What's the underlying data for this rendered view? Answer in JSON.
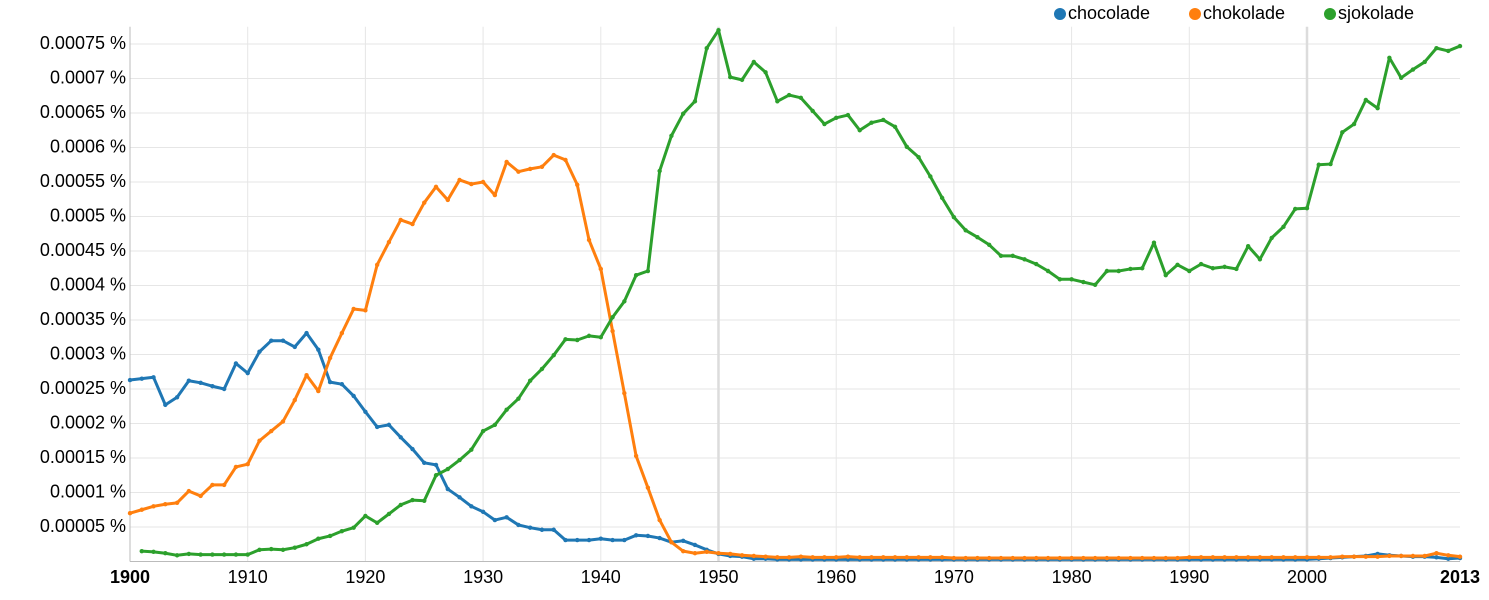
{
  "chart_data": {
    "type": "line",
    "x": [
      1900,
      1901,
      1902,
      1903,
      1904,
      1905,
      1906,
      1907,
      1908,
      1909,
      1910,
      1911,
      1912,
      1913,
      1914,
      1915,
      1916,
      1917,
      1918,
      1919,
      1920,
      1921,
      1922,
      1923,
      1924,
      1925,
      1926,
      1927,
      1928,
      1929,
      1930,
      1931,
      1932,
      1933,
      1934,
      1935,
      1936,
      1937,
      1938,
      1939,
      1940,
      1941,
      1942,
      1943,
      1944,
      1945,
      1946,
      1947,
      1948,
      1949,
      1950,
      1951,
      1952,
      1953,
      1954,
      1955,
      1956,
      1957,
      1958,
      1959,
      1960,
      1961,
      1962,
      1963,
      1964,
      1965,
      1966,
      1967,
      1968,
      1969,
      1970,
      1971,
      1972,
      1973,
      1974,
      1975,
      1976,
      1977,
      1978,
      1979,
      1980,
      1981,
      1982,
      1983,
      1984,
      1985,
      1986,
      1987,
      1988,
      1989,
      1990,
      1991,
      1992,
      1993,
      1994,
      1995,
      1996,
      1997,
      1998,
      1999,
      2000,
      2001,
      2002,
      2003,
      2004,
      2005,
      2006,
      2007,
      2008,
      2009,
      2010,
      2011,
      2012,
      2013
    ],
    "series": [
      {
        "name": "chocolade",
        "color": "#1f77b4",
        "values": [
          0.000263,
          0.000265,
          0.000267,
          0.000227,
          0.000238,
          0.000262,
          0.000259,
          0.000254,
          0.00025,
          0.000287,
          0.000273,
          0.000304,
          0.00032,
          0.00032,
          0.000311,
          0.000331,
          0.000307,
          0.00026,
          0.000257,
          0.00024,
          0.000217,
          0.000195,
          0.000198,
          0.00018,
          0.000163,
          0.000143,
          0.00014,
          0.000105,
          9.3e-05,
          8e-05,
          7.2e-05,
          6e-05,
          6.4e-05,
          5.3e-05,
          4.9e-05,
          4.6e-05,
          4.6e-05,
          3.1e-05,
          3.1e-05,
          3.1e-05,
          3.3e-05,
          3.1e-05,
          3.1e-05,
          3.8e-05,
          3.7e-05,
          3.4e-05,
          2.8e-05,
          3e-05,
          2.4e-05,
          1.7e-05,
          1.1e-05,
          8e-06,
          7e-06,
          4e-06,
          4e-06,
          3e-06,
          3e-06,
          3e-06,
          3e-06,
          3e-06,
          3e-06,
          3e-06,
          3e-06,
          3e-06,
          3e-06,
          3e-06,
          3e-06,
          3e-06,
          3e-06,
          3e-06,
          3e-06,
          3e-06,
          3e-06,
          3e-06,
          3e-06,
          3e-06,
          3e-06,
          3e-06,
          3e-06,
          3e-06,
          3e-06,
          3e-06,
          3e-06,
          3e-06,
          3e-06,
          3e-06,
          3e-06,
          3e-06,
          3e-06,
          3e-06,
          3e-06,
          3e-06,
          3e-06,
          3e-06,
          3e-06,
          3e-06,
          3e-06,
          3e-06,
          3e-06,
          3e-06,
          3e-06,
          4e-06,
          5e-06,
          6e-06,
          7e-06,
          8e-06,
          1.1e-05,
          9e-06,
          8e-06,
          7e-06,
          7e-06,
          6e-06,
          4e-06,
          5e-06
        ]
      },
      {
        "name": "chokolade",
        "color": "#ff7f0e",
        "values": [
          7e-05,
          7.5e-05,
          8e-05,
          8.3e-05,
          8.5e-05,
          0.000102,
          9.5e-05,
          0.000111,
          0.000111,
          0.000137,
          0.000141,
          0.000175,
          0.000189,
          0.000203,
          0.000234,
          0.00027,
          0.000247,
          0.000295,
          0.000331,
          0.000366,
          0.000364,
          0.00043,
          0.000463,
          0.000495,
          0.000489,
          0.00052,
          0.000543,
          0.000524,
          0.000553,
          0.000547,
          0.00055,
          0.000531,
          0.000579,
          0.000565,
          0.000569,
          0.000572,
          0.000589,
          0.000582,
          0.000546,
          0.000466,
          0.000424,
          0.000334,
          0.000244,
          0.000153,
          0.000107,
          6e-05,
          2.8e-05,
          1.5e-05,
          1.2e-05,
          1.4e-05,
          1.2e-05,
          1.1e-05,
          9e-06,
          8e-06,
          7e-06,
          6e-06,
          6e-06,
          7e-06,
          6e-06,
          6e-06,
          6e-06,
          7e-06,
          6e-06,
          6e-06,
          6e-06,
          6e-06,
          6e-06,
          6e-06,
          6e-06,
          6e-06,
          5e-06,
          5e-06,
          5e-06,
          5e-06,
          5e-06,
          5e-06,
          5e-06,
          5e-06,
          5e-06,
          5e-06,
          5e-06,
          5e-06,
          5e-06,
          5e-06,
          5e-06,
          5e-06,
          5e-06,
          5e-06,
          5e-06,
          5e-06,
          6e-06,
          6e-06,
          6e-06,
          6e-06,
          6e-06,
          6e-06,
          6e-06,
          6e-06,
          6e-06,
          6e-06,
          6e-06,
          6e-06,
          6e-06,
          7e-06,
          7e-06,
          7e-06,
          7e-06,
          8e-06,
          8e-06,
          8e-06,
          8e-06,
          1.2e-05,
          9e-06,
          7e-06
        ]
      },
      {
        "name": "sjokolade",
        "color": "#2ca02c",
        "values": [
          null,
          1.5e-05,
          1.4e-05,
          1.2e-05,
          9e-06,
          1.1e-05,
          1e-05,
          1e-05,
          1e-05,
          1e-05,
          1e-05,
          1.7e-05,
          1.8e-05,
          1.7e-05,
          2e-05,
          2.5e-05,
          3.3e-05,
          3.7e-05,
          4.4e-05,
          4.9e-05,
          6.6e-05,
          5.6e-05,
          6.9e-05,
          8.2e-05,
          8.9e-05,
          8.8e-05,
          0.000125,
          0.000134,
          0.000147,
          0.000162,
          0.000189,
          0.000198,
          0.00022,
          0.000236,
          0.000262,
          0.000279,
          0.000299,
          0.000322,
          0.000321,
          0.000327,
          0.000325,
          0.000354,
          0.000377,
          0.000415,
          0.000421,
          0.000566,
          0.000617,
          0.000649,
          0.000667,
          0.000744,
          0.00077,
          0.000702,
          0.000698,
          0.000724,
          0.000709,
          0.000667,
          0.000676,
          0.000672,
          0.000653,
          0.000634,
          0.000643,
          0.000647,
          0.000625,
          0.000636,
          0.00064,
          0.00063,
          0.000601,
          0.000586,
          0.000558,
          0.000527,
          0.000499,
          0.00048,
          0.00047,
          0.000459,
          0.000443,
          0.000443,
          0.000438,
          0.000431,
          0.000421,
          0.000409,
          0.000409,
          0.000405,
          0.000401,
          0.000421,
          0.000421,
          0.000424,
          0.000425,
          0.000462,
          0.000415,
          0.00043,
          0.000421,
          0.000431,
          0.000425,
          0.000427,
          0.000424,
          0.000457,
          0.000438,
          0.000469,
          0.000485,
          0.000511,
          0.000512,
          0.000575,
          0.000576,
          0.000622,
          0.000634,
          0.000669,
          0.000657,
          0.00073,
          0.000701,
          0.000713,
          0.000724,
          0.000744,
          0.00074,
          0.000747
        ]
      }
    ],
    "xlim": [
      1900,
      2013
    ],
    "xticks": [
      1900,
      1910,
      1920,
      1930,
      1940,
      1950,
      1960,
      1970,
      1980,
      1990,
      2000,
      2013
    ],
    "ylim": [
      0,
      0.000775
    ],
    "yticks": [
      {
        "value": 5e-05,
        "label": "0.00005 %"
      },
      {
        "value": 0.0001,
        "label": "0.0001 %"
      },
      {
        "value": 0.00015,
        "label": "0.00015 %"
      },
      {
        "value": 0.0002,
        "label": "0.0002 %"
      },
      {
        "value": 0.00025,
        "label": "0.00025 %"
      },
      {
        "value": 0.0003,
        "label": "0.0003 %"
      },
      {
        "value": 0.00035,
        "label": "0.00035 %"
      },
      {
        "value": 0.0004,
        "label": "0.0004 %"
      },
      {
        "value": 0.00045,
        "label": "0.00045 %"
      },
      {
        "value": 0.0005,
        "label": "0.0005 %"
      },
      {
        "value": 0.00055,
        "label": "0.00055 %"
      },
      {
        "value": 0.0006,
        "label": "0.0006 %"
      },
      {
        "value": 0.00065,
        "label": "0.00065 %"
      },
      {
        "value": 0.0007,
        "label": "0.0007 %"
      },
      {
        "value": 0.00075,
        "label": "0.00075 %"
      }
    ],
    "grid": true,
    "legend": "top-right"
  }
}
